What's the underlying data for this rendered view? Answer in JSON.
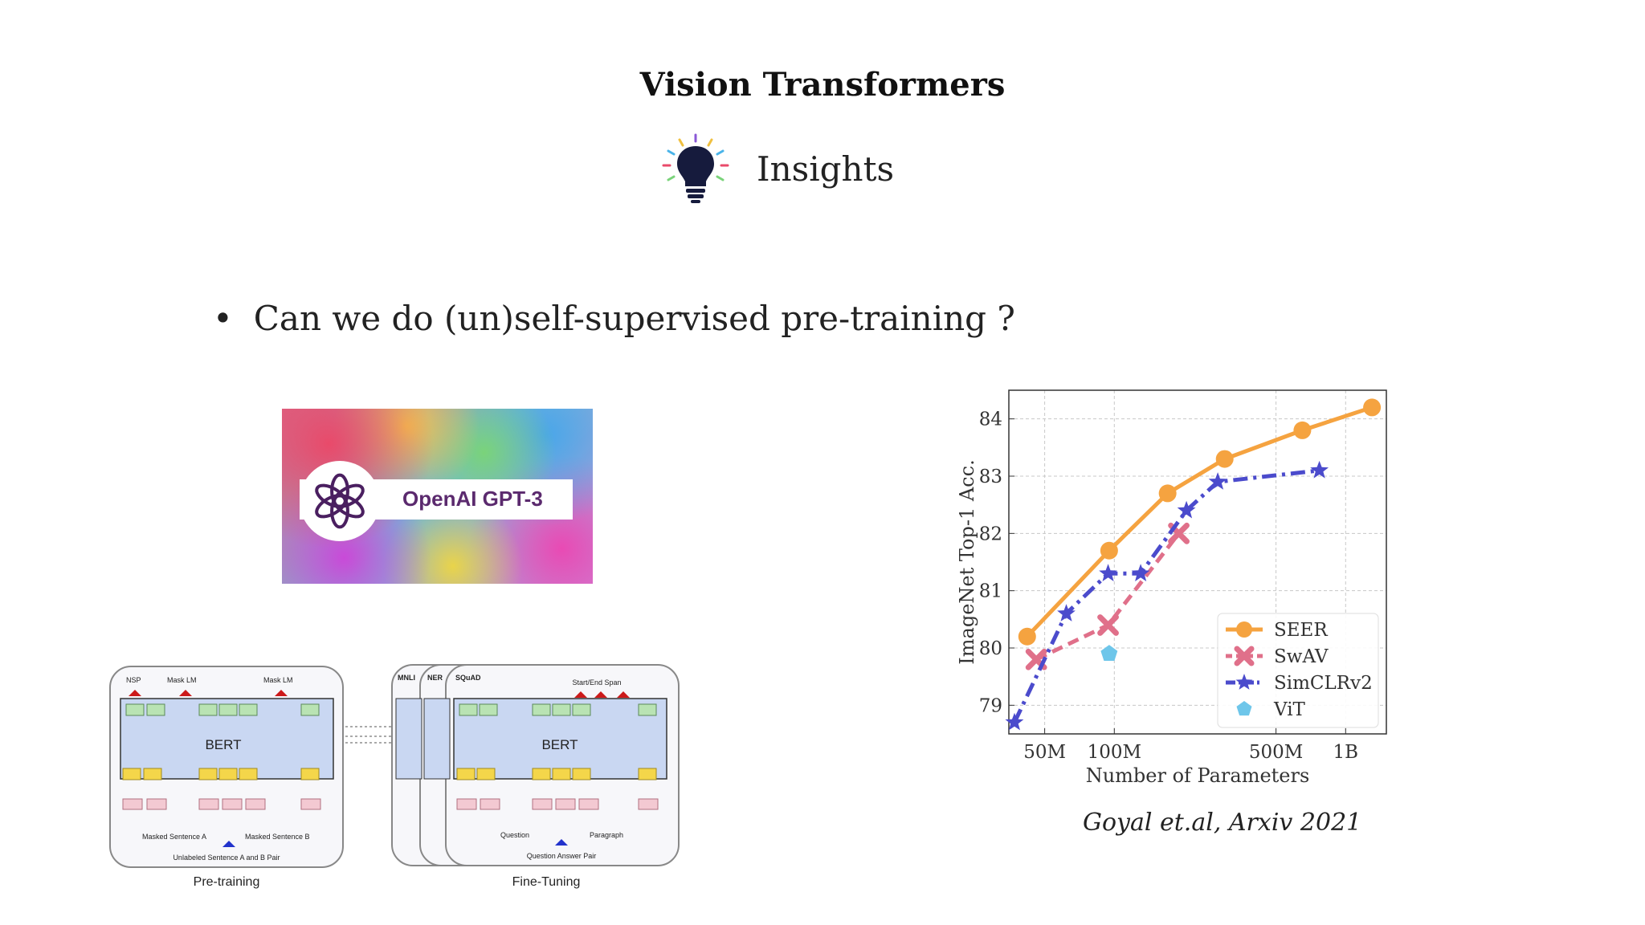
{
  "slide": {
    "title": "Vision Transformers",
    "subtitle": "Insights",
    "bullet_symbol": "•",
    "bullet": "Can we do (un)self-supervised pre-training ?",
    "citation": "Goyal  et.al, Arxiv 2021",
    "icon": "lightbulb-icon"
  },
  "gpt_card": {
    "label": "OpenAI GPT-3",
    "icon": "openai-logo-icon"
  },
  "bert_figure": {
    "pretrain": {
      "caption": "Pre-training",
      "model": "BERT",
      "nsp": "NSP",
      "mask1": "Mask LM",
      "mask2": "Mask LM",
      "sent_a": "Masked Sentence A",
      "sent_b": "Masked Sentence B",
      "pair": "Unlabeled Sentence A and B Pair"
    },
    "finetune": {
      "caption": "Fine-Tuning",
      "model": "BERT",
      "tasks": [
        "MNLI",
        "NER",
        "SQuAD"
      ],
      "span": "Start/End Span",
      "question": "Question",
      "paragraph": "Paragraph",
      "pair": "Question Answer Pair"
    }
  },
  "chart_data": {
    "type": "line",
    "xlabel": "Number of Parameters",
    "ylabel": "ImageNet Top-1 Acc.",
    "xscale": "log",
    "xlim": [
      35,
      1500
    ],
    "ylim": [
      78.5,
      84.5
    ],
    "xticks": [
      {
        "value": 50,
        "label": "50M"
      },
      {
        "value": 100,
        "label": "100M"
      },
      {
        "value": 500,
        "label": "500M"
      },
      {
        "value": 1000,
        "label": "1B"
      }
    ],
    "yticks": [
      79,
      80,
      81,
      82,
      83,
      84
    ],
    "grid": true,
    "legend_position": "bottom-right",
    "series": [
      {
        "name": "SEER",
        "color": "#f5a340",
        "marker": "circle",
        "dash": "solid",
        "x": [
          42,
          95,
          170,
          300,
          650,
          1300
        ],
        "y": [
          80.2,
          81.7,
          82.7,
          83.3,
          83.8,
          84.2
        ]
      },
      {
        "name": "SwAV",
        "color": "#e0708a",
        "marker": "x",
        "dash": "dashed",
        "x": [
          46,
          94,
          190
        ],
        "y": [
          79.8,
          80.4,
          82.0
        ]
      },
      {
        "name": "SimCLRv2",
        "color": "#4b4bcc",
        "marker": "star",
        "dash": "dashdot",
        "x": [
          37,
          62,
          94,
          130,
          205,
          280,
          770
        ],
        "y": [
          78.7,
          80.6,
          81.3,
          81.3,
          82.4,
          82.9,
          83.1
        ]
      },
      {
        "name": "ViT",
        "color": "#6ec6ea",
        "marker": "pentagon",
        "dash": "none",
        "x": [
          95
        ],
        "y": [
          79.9
        ]
      }
    ]
  }
}
